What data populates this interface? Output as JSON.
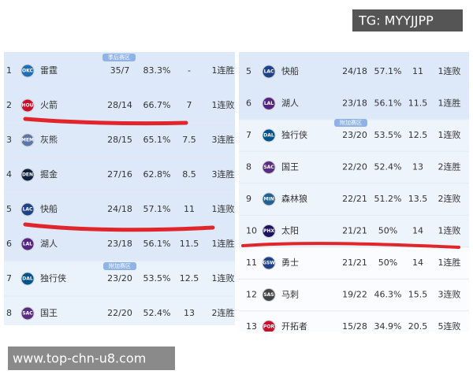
{
  "watermark_top": "TG: MYYJJPP",
  "watermark_bottom": "www.top-chn-u8.com",
  "left_table": {
    "playoff_label": "季后赛区",
    "playin_label": "附加赛区",
    "rows": [
      {
        "rank": "1",
        "logo": "OKC",
        "logo_color": "#1d6fb8",
        "name": "雷霆",
        "record": "35/7",
        "pct": "83.3%",
        "gb": "-",
        "streak": "1连胜"
      },
      {
        "rank": "2",
        "logo": "HOU",
        "logo_color": "#c8102e",
        "name": "火箭",
        "record": "28/14",
        "pct": "66.7%",
        "gb": "7",
        "streak": "1连败"
      },
      {
        "rank": "3",
        "logo": "MEM",
        "logo_color": "#5d76a9",
        "name": "灰熊",
        "record": "28/15",
        "pct": "65.1%",
        "gb": "7.5",
        "streak": "3连胜"
      },
      {
        "rank": "4",
        "logo": "DEN",
        "logo_color": "#0e2240",
        "name": "掘金",
        "record": "27/16",
        "pct": "62.8%",
        "gb": "8.5",
        "streak": "3连胜"
      },
      {
        "rank": "5",
        "logo": "LAC",
        "logo_color": "#1d428a",
        "name": "快船",
        "record": "24/18",
        "pct": "57.1%",
        "gb": "11",
        "streak": "1连败"
      },
      {
        "rank": "6",
        "logo": "LAL",
        "logo_color": "#552583",
        "name": "湖人",
        "record": "23/18",
        "pct": "56.1%",
        "gb": "11.5",
        "streak": "1连胜"
      },
      {
        "rank": "7",
        "logo": "DAL",
        "logo_color": "#00538c",
        "name": "独行侠",
        "record": "23/20",
        "pct": "53.5%",
        "gb": "12.5",
        "streak": "1连败"
      },
      {
        "rank": "8",
        "logo": "SAC",
        "logo_color": "#5a2d81",
        "name": "国王",
        "record": "22/20",
        "pct": "52.4%",
        "gb": "13",
        "streak": "2连胜"
      }
    ]
  },
  "right_table": {
    "playin_label": "附加赛区",
    "rows": [
      {
        "rank": "5",
        "logo": "LAC",
        "logo_color": "#1d428a",
        "name": "快船",
        "record": "24/18",
        "pct": "57.1%",
        "gb": "11",
        "streak": "1连败"
      },
      {
        "rank": "6",
        "logo": "LAL",
        "logo_color": "#552583",
        "name": "湖人",
        "record": "23/18",
        "pct": "56.1%",
        "gb": "11.5",
        "streak": "1连胜"
      },
      {
        "rank": "7",
        "logo": "DAL",
        "logo_color": "#00538c",
        "name": "独行侠",
        "record": "23/20",
        "pct": "53.5%",
        "gb": "12.5",
        "streak": "1连败"
      },
      {
        "rank": "8",
        "logo": "SAC",
        "logo_color": "#5a2d81",
        "name": "国王",
        "record": "22/20",
        "pct": "52.4%",
        "gb": "13",
        "streak": "2连胜"
      },
      {
        "rank": "9",
        "logo": "MIN",
        "logo_color": "#236192",
        "name": "森林狼",
        "record": "22/21",
        "pct": "51.2%",
        "gb": "13.5",
        "streak": "2连败"
      },
      {
        "rank": "10",
        "logo": "PHX",
        "logo_color": "#1d1160",
        "name": "太阳",
        "record": "21/21",
        "pct": "50%",
        "gb": "14",
        "streak": "1连败"
      },
      {
        "rank": "11",
        "logo": "GSW",
        "logo_color": "#1d428a",
        "name": "勇士",
        "record": "21/21",
        "pct": "50%",
        "gb": "14",
        "streak": "1连胜"
      },
      {
        "rank": "12",
        "logo": "SAS",
        "logo_color": "#444444",
        "name": "马刺",
        "record": "19/22",
        "pct": "46.3%",
        "gb": "15.5",
        "streak": "3连败"
      },
      {
        "rank": "13",
        "logo": "POR",
        "logo_color": "#c8102e",
        "name": "开拓者",
        "record": "15/28",
        "pct": "34.9%",
        "gb": "20.5",
        "streak": "5连败"
      }
    ]
  }
}
